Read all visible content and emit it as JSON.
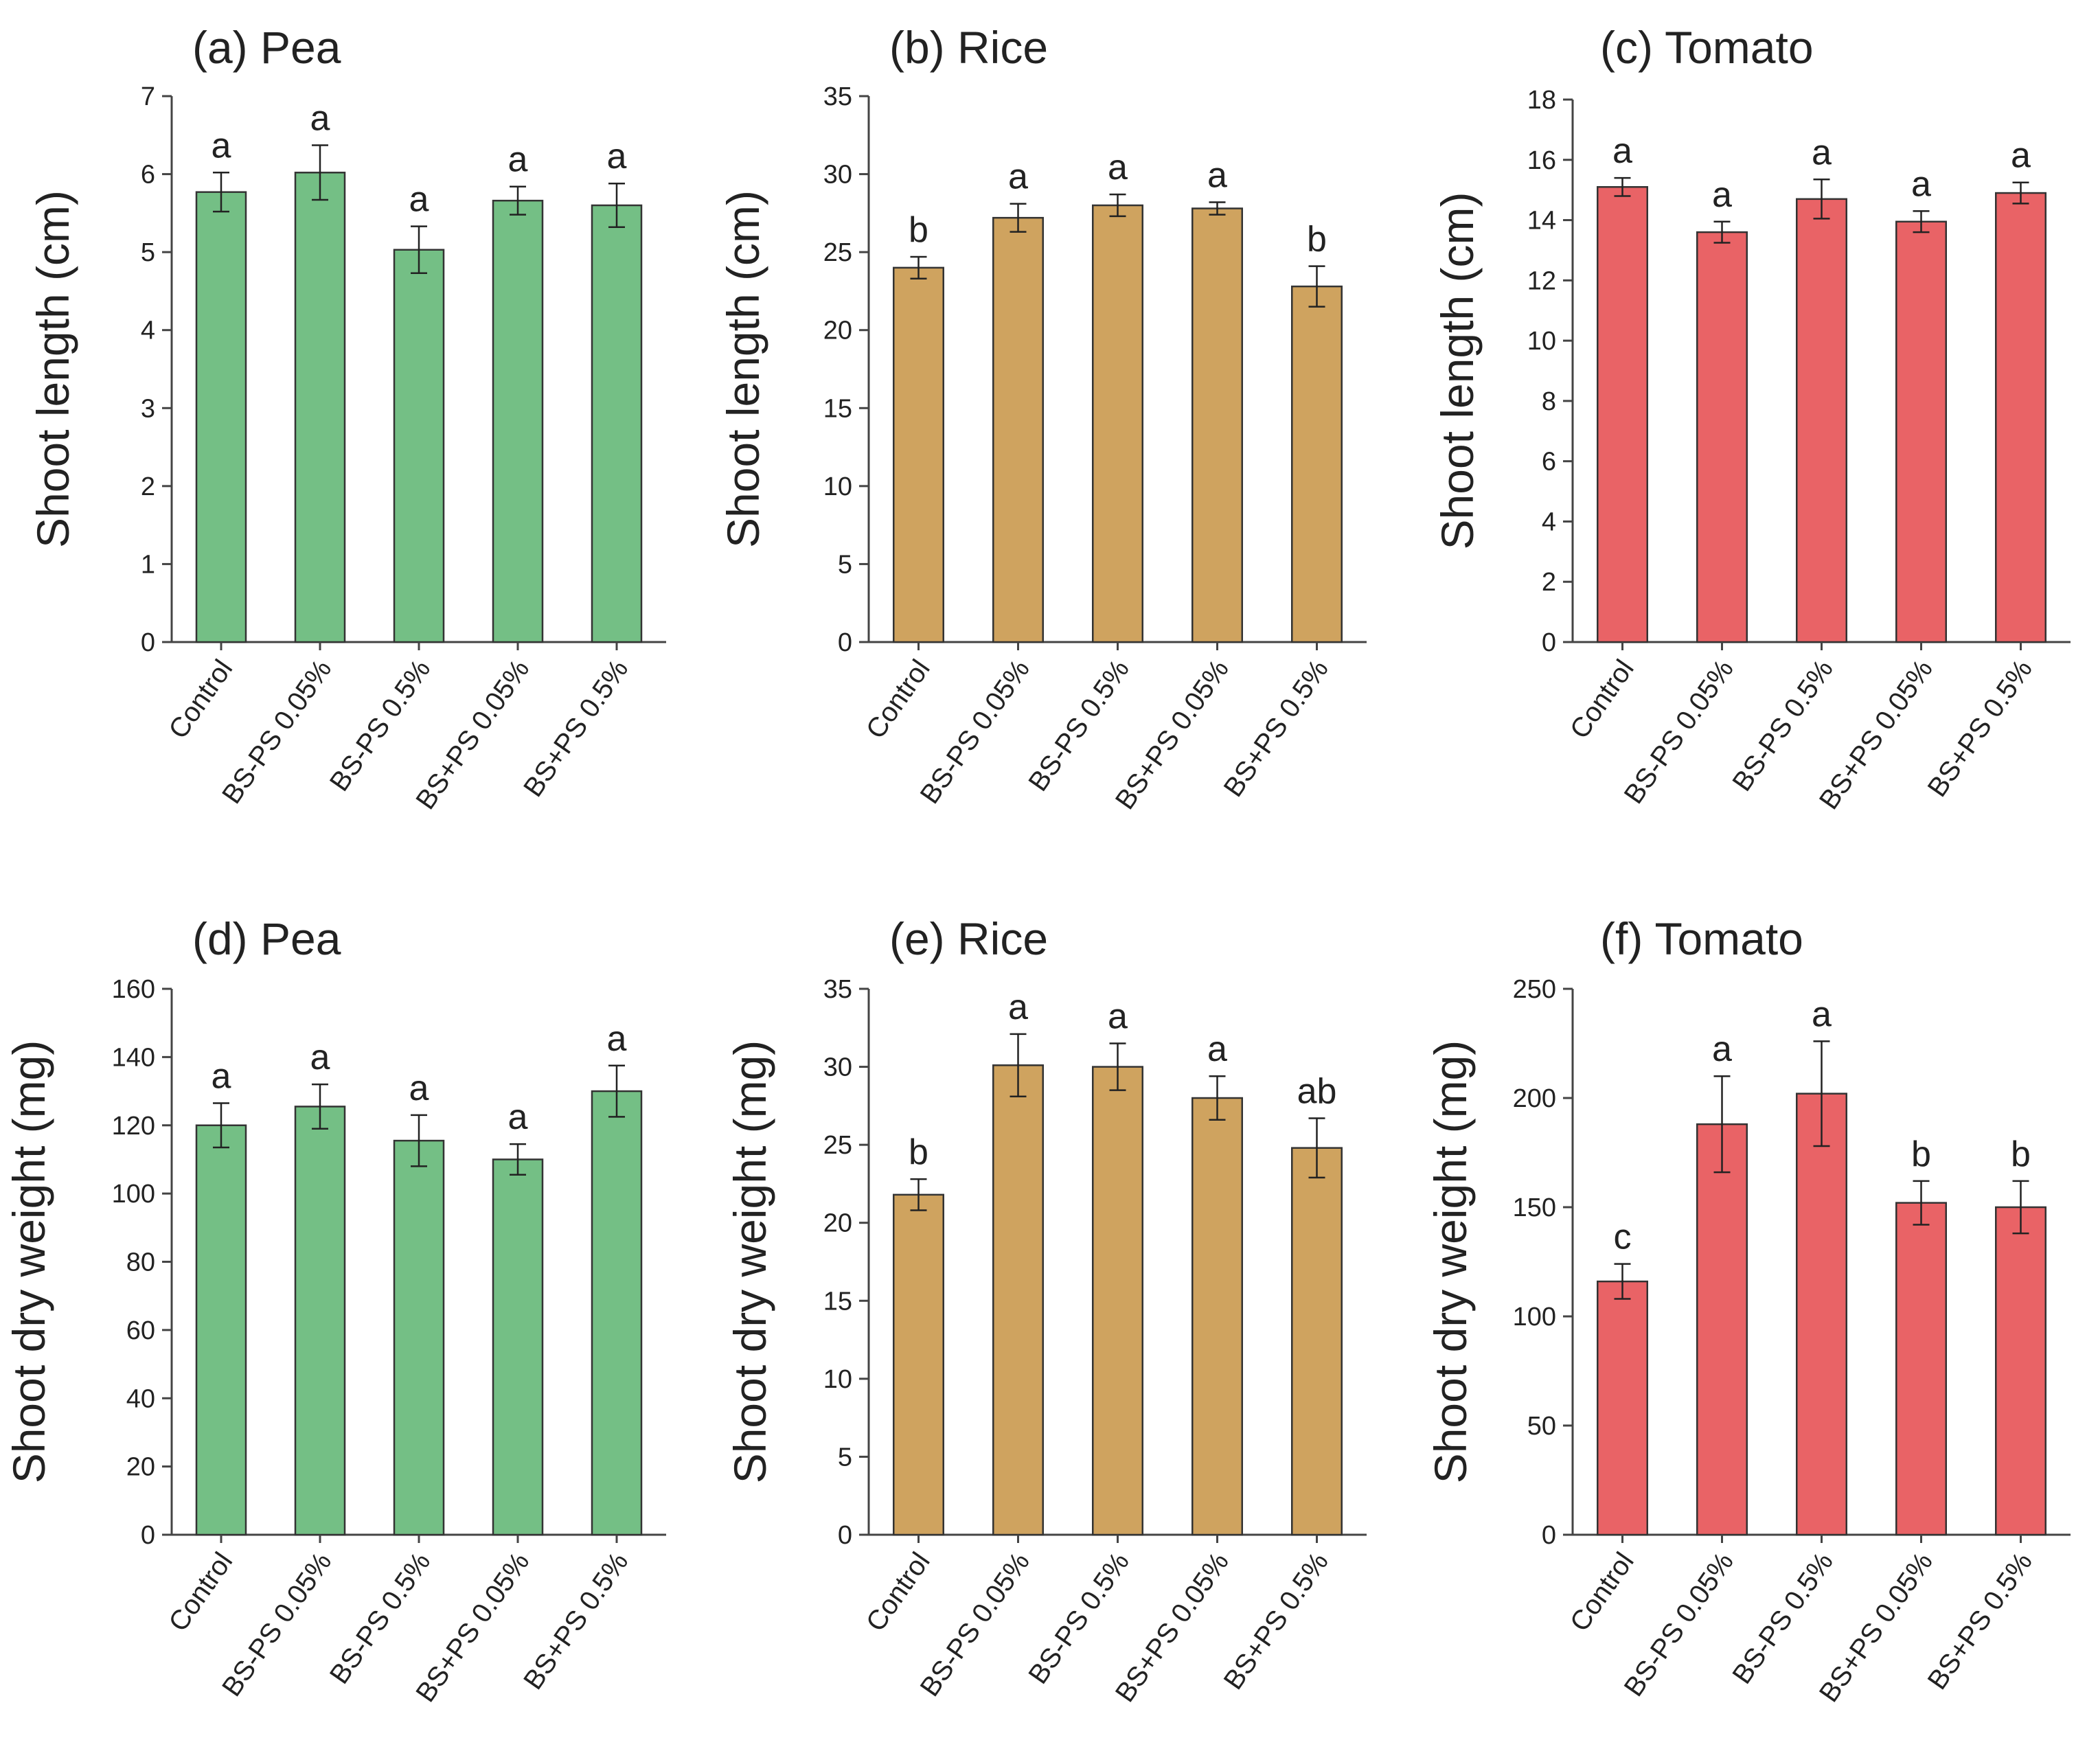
{
  "chart_data": [
    {
      "type": "bar",
      "title": "(a) Pea",
      "xlabel": "",
      "ylabel": "Shoot length (cm)",
      "ylim": [
        0,
        7
      ],
      "yticks": [
        0,
        1,
        2,
        3,
        4,
        5,
        6,
        7
      ],
      "color": "#74bf85",
      "categories": [
        "Control",
        "BS-PS 0.05%",
        "BS-PS 0.5%",
        "BS+PS 0.05%",
        "BS+PS 0.5%"
      ],
      "values": [
        5.77,
        6.02,
        5.03,
        5.66,
        5.6
      ],
      "errors": [
        0.25,
        0.35,
        0.3,
        0.18,
        0.28
      ],
      "significance": [
        "a",
        "a",
        "a",
        "a",
        "a"
      ]
    },
    {
      "type": "bar",
      "title": "(b) Rice",
      "xlabel": "",
      "ylabel": "Shoot length (cm)",
      "ylim": [
        0,
        35
      ],
      "yticks": [
        0,
        5,
        10,
        15,
        20,
        25,
        30,
        35
      ],
      "color": "#cfa35f",
      "categories": [
        "Control",
        "BS-PS 0.05%",
        "BS-PS 0.5%",
        "BS+PS 0.05%",
        "BS+PS 0.5%"
      ],
      "values": [
        24.0,
        27.2,
        28.0,
        27.8,
        22.8
      ],
      "errors": [
        0.7,
        0.9,
        0.7,
        0.4,
        1.3
      ],
      "significance": [
        "b",
        "a",
        "a",
        "a",
        "b"
      ]
    },
    {
      "type": "bar",
      "title": "(c) Tomato",
      "xlabel": "",
      "ylabel": "Shoot length (cm)",
      "ylim": [
        0,
        18
      ],
      "yticks": [
        0,
        2,
        4,
        6,
        8,
        10,
        12,
        14,
        16,
        18
      ],
      "color": "#e96366",
      "categories": [
        "Control",
        "BS-PS 0.05%",
        "BS-PS 0.5%",
        "BS+PS 0.05%",
        "BS+PS 0.5%"
      ],
      "values": [
        15.1,
        13.6,
        14.7,
        13.95,
        14.9
      ],
      "errors": [
        0.3,
        0.35,
        0.65,
        0.35,
        0.35
      ],
      "significance": [
        "a",
        "a",
        "a",
        "a",
        "a"
      ]
    },
    {
      "type": "bar",
      "title": "(d) Pea",
      "xlabel": "",
      "ylabel": "Shoot dry weight (mg)",
      "ylim": [
        0,
        160
      ],
      "yticks": [
        0,
        20,
        40,
        60,
        80,
        100,
        120,
        140,
        160
      ],
      "color": "#74bf85",
      "categories": [
        "Control",
        "BS-PS 0.05%",
        "BS-PS 0.5%",
        "BS+PS 0.05%",
        "BS+PS 0.5%"
      ],
      "values": [
        120,
        125.5,
        115.5,
        110,
        130
      ],
      "errors": [
        6.5,
        6.5,
        7.5,
        4.5,
        7.5
      ],
      "significance": [
        "a",
        "a",
        "a",
        "a",
        "a"
      ]
    },
    {
      "type": "bar",
      "title": "(e) Rice",
      "xlabel": "",
      "ylabel": "Shoot dry weight (mg)",
      "ylim": [
        0,
        35
      ],
      "yticks": [
        0,
        5,
        10,
        15,
        20,
        25,
        30,
        35
      ],
      "color": "#cfa35f",
      "categories": [
        "Control",
        "BS-PS 0.05%",
        "BS-PS 0.5%",
        "BS+PS 0.05%",
        "BS+PS 0.5%"
      ],
      "values": [
        21.8,
        30.1,
        30.0,
        28.0,
        24.8
      ],
      "errors": [
        1.0,
        2.0,
        1.5,
        1.4,
        1.9
      ],
      "significance": [
        "b",
        "a",
        "a",
        "a",
        "ab"
      ]
    },
    {
      "type": "bar",
      "title": "(f) Tomato",
      "xlabel": "",
      "ylabel": "Shoot dry weight (mg)",
      "ylim": [
        0,
        250
      ],
      "yticks": [
        0,
        50,
        100,
        150,
        200,
        250
      ],
      "color": "#e96366",
      "categories": [
        "Control",
        "BS-PS 0.05%",
        "BS-PS 0.5%",
        "BS+PS 0.05%",
        "BS+PS 0.5%"
      ],
      "values": [
        116,
        188,
        202,
        152,
        150
      ],
      "errors": [
        8,
        22,
        24,
        10,
        12
      ],
      "significance": [
        "c",
        "a",
        "a",
        "b",
        "b"
      ]
    }
  ]
}
